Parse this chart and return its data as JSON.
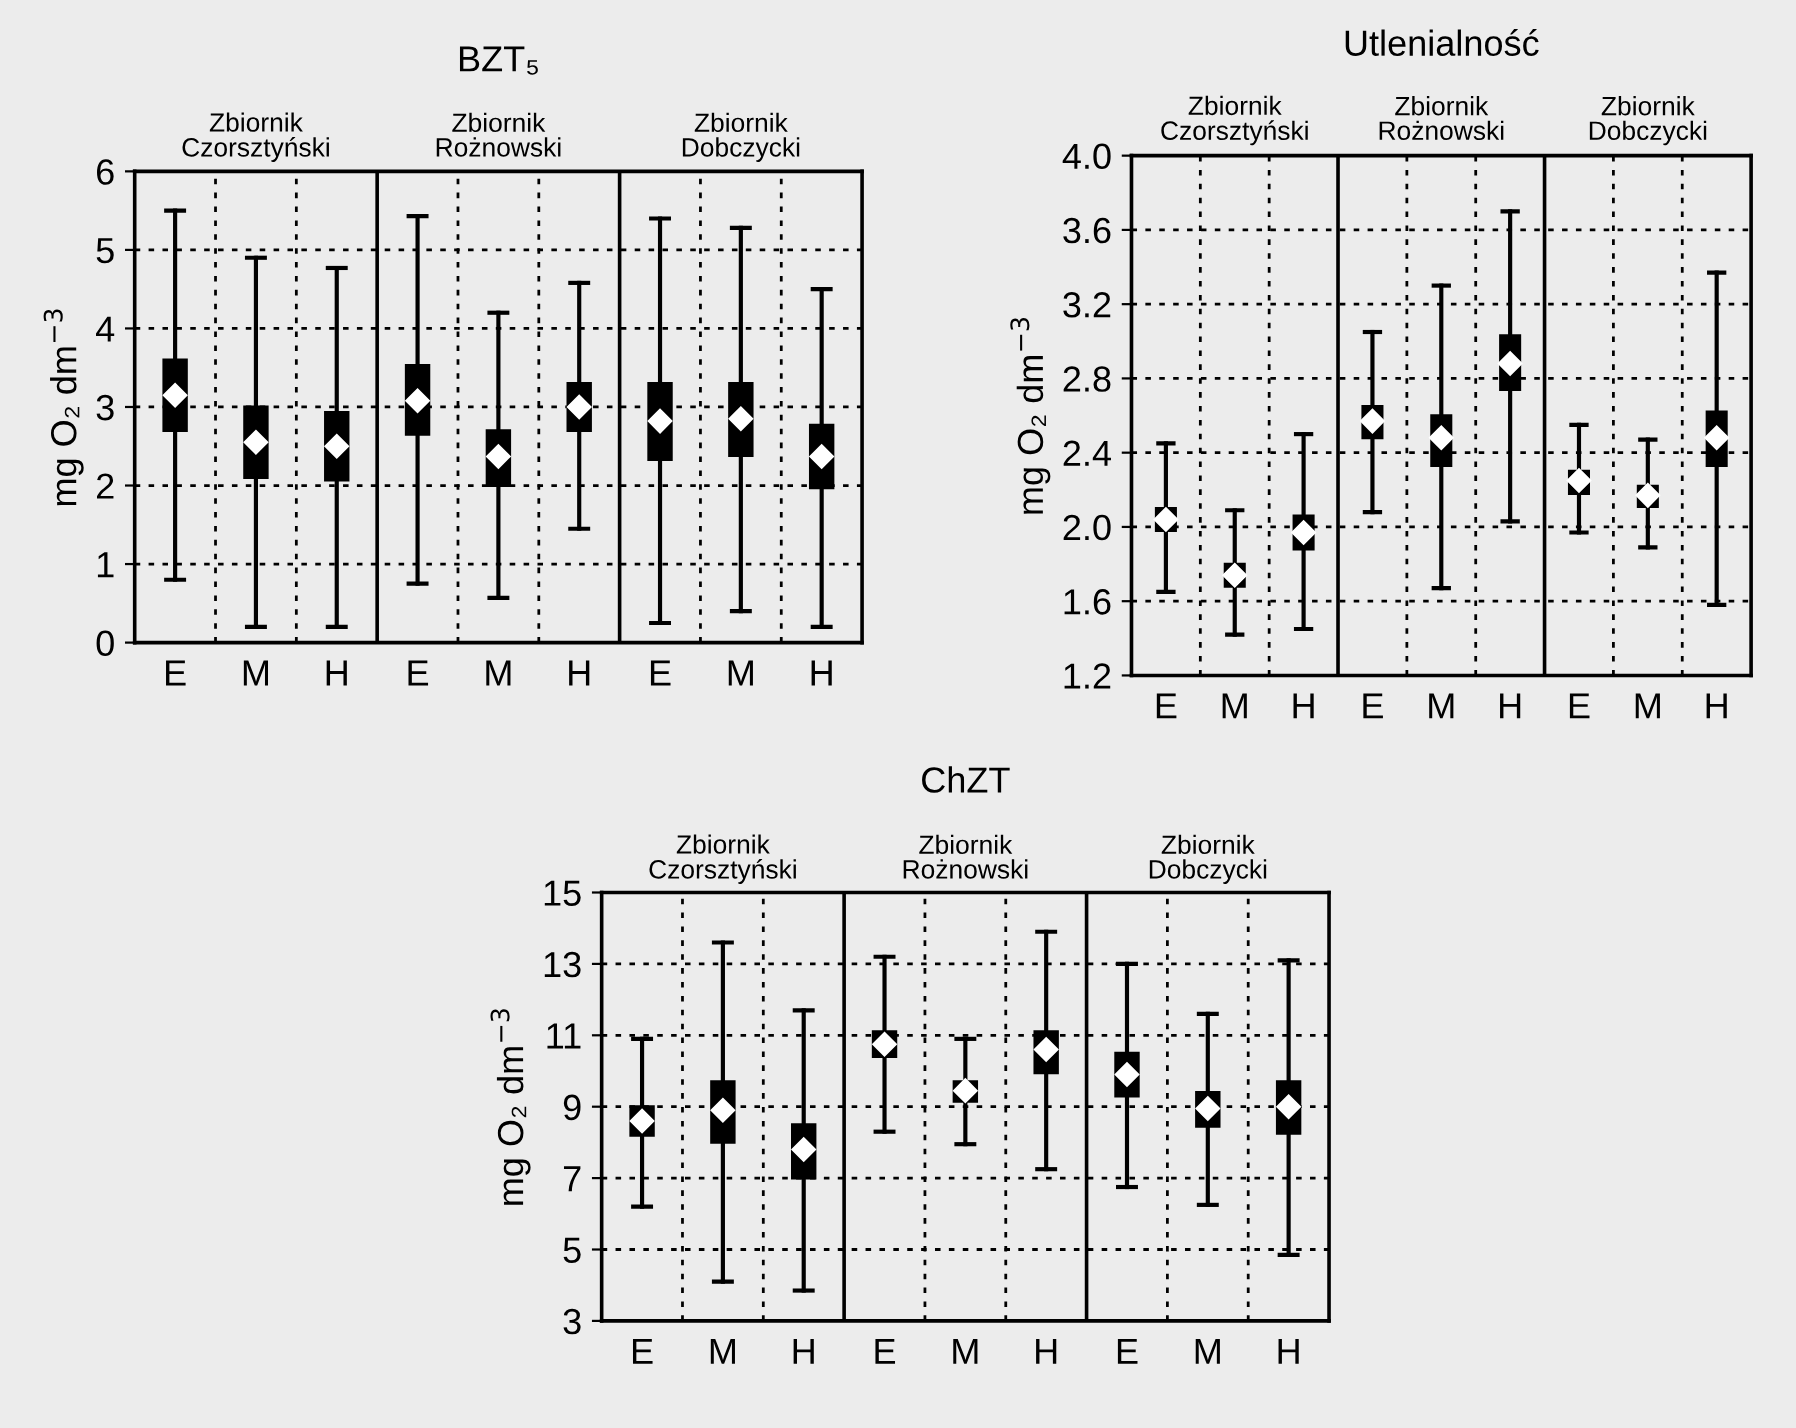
{
  "chart_data": [
    {
      "type": "box",
      "title": "BZT₅",
      "ylabel": "mg O₂ dm$^{−3}$",
      "categories": [
        "E",
        "M",
        "H",
        "E",
        "M",
        "H",
        "E",
        "M",
        "H"
      ],
      "annotations": [
        "Zbiornik\nCzorsztyński",
        "Zbiornik\nRożnowski",
        "Zbiornik\nDobczycki"
      ],
      "ylim": [
        0,
        6
      ],
      "yticks": [
        0,
        1,
        2,
        3,
        4,
        5,
        6
      ],
      "grid": "y",
      "color": "#000000",
      "boxes": [
        {
          "low": 0.8,
          "q1": 2.7,
          "median": 3.15,
          "q3": 3.6,
          "high": 5.5
        },
        {
          "low": 0.2,
          "q1": 2.1,
          "median": 2.55,
          "q3": 3.0,
          "high": 4.9
        },
        {
          "low": 0.2,
          "q1": 2.07,
          "median": 2.5,
          "q3": 2.93,
          "high": 4.77
        },
        {
          "low": 0.75,
          "q1": 2.65,
          "median": 3.08,
          "q3": 3.53,
          "high": 5.43
        },
        {
          "low": 0.57,
          "q1": 2.0,
          "median": 2.37,
          "q3": 2.7,
          "high": 4.2
        },
        {
          "low": 1.45,
          "q1": 2.7,
          "median": 3.0,
          "q3": 3.3,
          "high": 4.58
        },
        {
          "low": 0.25,
          "q1": 2.33,
          "median": 2.82,
          "q3": 3.3,
          "high": 5.4
        },
        {
          "low": 0.4,
          "q1": 2.38,
          "median": 2.85,
          "q3": 3.3,
          "high": 5.28
        },
        {
          "low": 0.2,
          "q1": 1.97,
          "median": 2.37,
          "q3": 2.77,
          "high": 4.5
        }
      ]
    },
    {
      "type": "box",
      "title": "Utlenialność",
      "ylabel": "mg O₂ dm$^{−3}$",
      "categories": [
        "E",
        "M",
        "H",
        "E",
        "M",
        "H",
        "E",
        "M",
        "H"
      ],
      "annotations": [
        "Zbiornik\nCzorsztyński",
        "Zbiornik\nRożnowski",
        "Zbiornik\nDobczycki"
      ],
      "ylim": [
        1.2,
        4.0
      ],
      "yticks": [
        {
          "value": 1.2,
          "label": "1.2"
        },
        {
          "value": 1.6,
          "label": "1.6"
        },
        {
          "value": 2.0,
          "label": "2.0"
        },
        {
          "value": 2.4,
          "label": "2.4"
        },
        {
          "value": 2.8,
          "label": "2.8"
        },
        {
          "value": 3.2,
          "label": "3.2"
        },
        {
          "value": 3.6,
          "label": "3.6"
        },
        {
          "value": 4.0,
          "label": "4.0"
        }
      ],
      "grid": "y",
      "color": "#000000",
      "boxes": [
        {
          "low": 1.65,
          "q1": 1.98,
          "median": 2.04,
          "q3": 2.1,
          "high": 2.45
        },
        {
          "low": 1.42,
          "q1": 1.68,
          "median": 1.74,
          "q3": 1.8,
          "high": 2.09
        },
        {
          "low": 1.45,
          "q1": 1.88,
          "median": 1.97,
          "q3": 2.06,
          "high": 2.5
        },
        {
          "low": 2.08,
          "q1": 2.48,
          "median": 2.57,
          "q3": 2.65,
          "high": 3.05
        },
        {
          "low": 1.67,
          "q1": 2.33,
          "median": 2.48,
          "q3": 2.6,
          "high": 3.3
        },
        {
          "low": 2.03,
          "q1": 2.74,
          "median": 2.88,
          "q3": 3.03,
          "high": 3.7
        },
        {
          "low": 1.97,
          "q1": 2.18,
          "median": 2.25,
          "q3": 2.3,
          "high": 2.55
        },
        {
          "low": 1.89,
          "q1": 2.11,
          "median": 2.17,
          "q3": 2.22,
          "high": 2.47
        },
        {
          "low": 1.58,
          "q1": 2.33,
          "median": 2.48,
          "q3": 2.62,
          "high": 3.37
        }
      ]
    },
    {
      "type": "box",
      "title": "ChZT",
      "ylabel": "mg O₂ dm$^{−3}$",
      "categories": [
        "E",
        "M",
        "H",
        "E",
        "M",
        "H",
        "E",
        "M",
        "H"
      ],
      "annotations": [
        "Zbiornik\nCzorsztyński",
        "Zbiornik\nRożnowski",
        "Zbiornik\nDobczycki"
      ],
      "ylim": [
        3,
        15
      ],
      "yticks": [
        3,
        5,
        7,
        9,
        11,
        13,
        15
      ],
      "grid": "y",
      "color": "#000000",
      "boxes": [
        {
          "low": 6.2,
          "q1": 8.2,
          "median": 8.6,
          "q3": 9.0,
          "high": 10.9
        },
        {
          "low": 4.1,
          "q1": 8.0,
          "median": 8.9,
          "q3": 9.7,
          "high": 13.6
        },
        {
          "low": 3.85,
          "q1": 7.0,
          "median": 7.8,
          "q3": 8.5,
          "high": 11.7
        },
        {
          "low": 8.3,
          "q1": 10.4,
          "median": 10.75,
          "q3": 11.1,
          "high": 13.2
        },
        {
          "low": 7.95,
          "q1": 9.15,
          "median": 9.45,
          "q3": 9.7,
          "high": 10.9
        },
        {
          "low": 7.25,
          "q1": 9.95,
          "median": 10.6,
          "q3": 11.1,
          "high": 13.9
        },
        {
          "low": 6.75,
          "q1": 9.3,
          "median": 9.9,
          "q3": 10.5,
          "high": 13.0
        },
        {
          "low": 6.25,
          "q1": 8.45,
          "median": 8.95,
          "q3": 9.4,
          "high": 11.6
        },
        {
          "low": 4.85,
          "q1": 8.25,
          "median": 9.0,
          "q3": 9.7,
          "high": 13.1
        }
      ]
    }
  ]
}
